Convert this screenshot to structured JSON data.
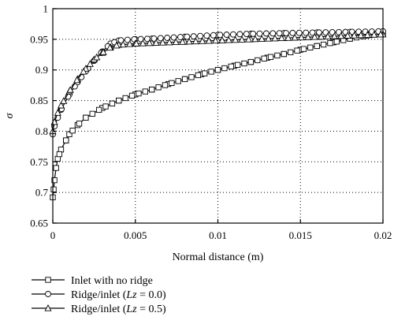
{
  "chart_data": {
    "type": "line",
    "xlabel": "Normal distance (m)",
    "ylabel": "σ",
    "xlim": [
      0,
      0.02
    ],
    "ylim": [
      0.65,
      1
    ],
    "xticks": [
      0,
      0.005,
      0.01,
      0.015,
      0.02
    ],
    "xtick_labels": [
      "0",
      "0.005",
      "0.01",
      "0.015",
      "0.02"
    ],
    "yticks": [
      0.65,
      0.7,
      0.75,
      0.8,
      0.85,
      0.9,
      0.95,
      1
    ],
    "ytick_labels": [
      "0.65",
      "0.7",
      "0.75",
      "0.8",
      "0.85",
      "0.9",
      "0.95",
      "1"
    ],
    "grid": true,
    "legend_position": "below",
    "series": [
      {
        "name_prefix": "Inlet with no ridge",
        "name_italic": "",
        "name_suffix": "",
        "marker": "square",
        "x": [
          0,
          5e-05,
          0.0001,
          0.0002,
          0.0003,
          0.0005,
          0.0008,
          0.001,
          0.0015,
          0.002,
          0.003,
          0.004,
          0.005,
          0.006,
          0.007,
          0.008,
          0.009,
          0.01,
          0.011,
          0.012,
          0.013,
          0.014,
          0.015,
          0.016,
          0.017,
          0.018,
          0.019,
          0.02
        ],
        "y": [
          0.692,
          0.705,
          0.72,
          0.74,
          0.755,
          0.77,
          0.785,
          0.795,
          0.81,
          0.822,
          0.838,
          0.85,
          0.86,
          0.868,
          0.877,
          0.885,
          0.893,
          0.9,
          0.907,
          0.913,
          0.92,
          0.926,
          0.933,
          0.939,
          0.945,
          0.951,
          0.956,
          0.96
        ]
      },
      {
        "name_prefix": "Ridge/inlet (",
        "name_italic": "Lz",
        "name_suffix": " = 0.0)",
        "marker": "circle",
        "x": [
          0,
          0.0001,
          0.0003,
          0.0005,
          0.001,
          0.0015,
          0.002,
          0.0025,
          0.003,
          0.0035,
          0.004,
          0.005,
          0.006,
          0.008,
          0.01,
          0.012,
          0.014,
          0.016,
          0.018,
          0.02
        ],
        "y": [
          0.795,
          0.808,
          0.822,
          0.835,
          0.86,
          0.88,
          0.898,
          0.915,
          0.93,
          0.943,
          0.948,
          0.95,
          0.951,
          0.954,
          0.957,
          0.959,
          0.96,
          0.961,
          0.962,
          0.963
        ]
      },
      {
        "name_prefix": "Ridge/inlet (",
        "name_italic": "Lz",
        "name_suffix": " = 0.5)",
        "marker": "triangle",
        "x": [
          0,
          0.0001,
          0.0003,
          0.0005,
          0.001,
          0.0015,
          0.002,
          0.0025,
          0.003,
          0.0035,
          0.004,
          0.005,
          0.006,
          0.008,
          0.01,
          0.012,
          0.014,
          0.016,
          0.018,
          0.02
        ],
        "y": [
          0.8,
          0.815,
          0.83,
          0.842,
          0.865,
          0.885,
          0.902,
          0.917,
          0.928,
          0.937,
          0.941,
          0.943,
          0.944,
          0.946,
          0.948,
          0.95,
          0.952,
          0.954,
          0.956,
          0.958
        ]
      }
    ]
  }
}
